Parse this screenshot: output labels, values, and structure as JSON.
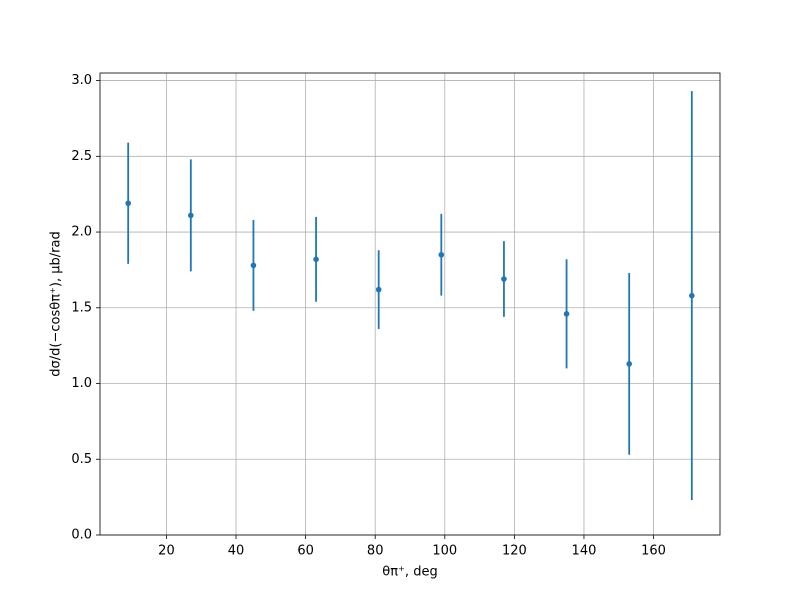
{
  "chart_data": {
    "type": "errorbar",
    "x": [
      9,
      27,
      45,
      63,
      81,
      99,
      117,
      135,
      153,
      171
    ],
    "values": [
      2.19,
      2.11,
      1.78,
      1.82,
      1.62,
      1.85,
      1.69,
      1.46,
      1.13,
      1.58
    ],
    "errors": [
      0.4,
      0.37,
      0.3,
      0.28,
      0.26,
      0.27,
      0.25,
      0.36,
      0.6,
      1.35
    ],
    "color": "#1f77b4",
    "xlabel": "θπ⁺, deg",
    "ylabel": "dσ/d(−cosθπ⁺), μb/rad",
    "xlim": [
      0.9,
      179.1
    ],
    "ylim": [
      0,
      3.05
    ],
    "xticks": [
      20,
      40,
      60,
      80,
      100,
      120,
      140,
      160
    ],
    "yticks": [
      {
        "value": 0,
        "label": "0.0"
      },
      0.5,
      {
        "value": 1,
        "label": "1.0"
      },
      1.5,
      {
        "value": 2,
        "label": "2.0"
      },
      2.5,
      {
        "value": 3,
        "label": "3.0"
      }
    ],
    "grid": true
  }
}
